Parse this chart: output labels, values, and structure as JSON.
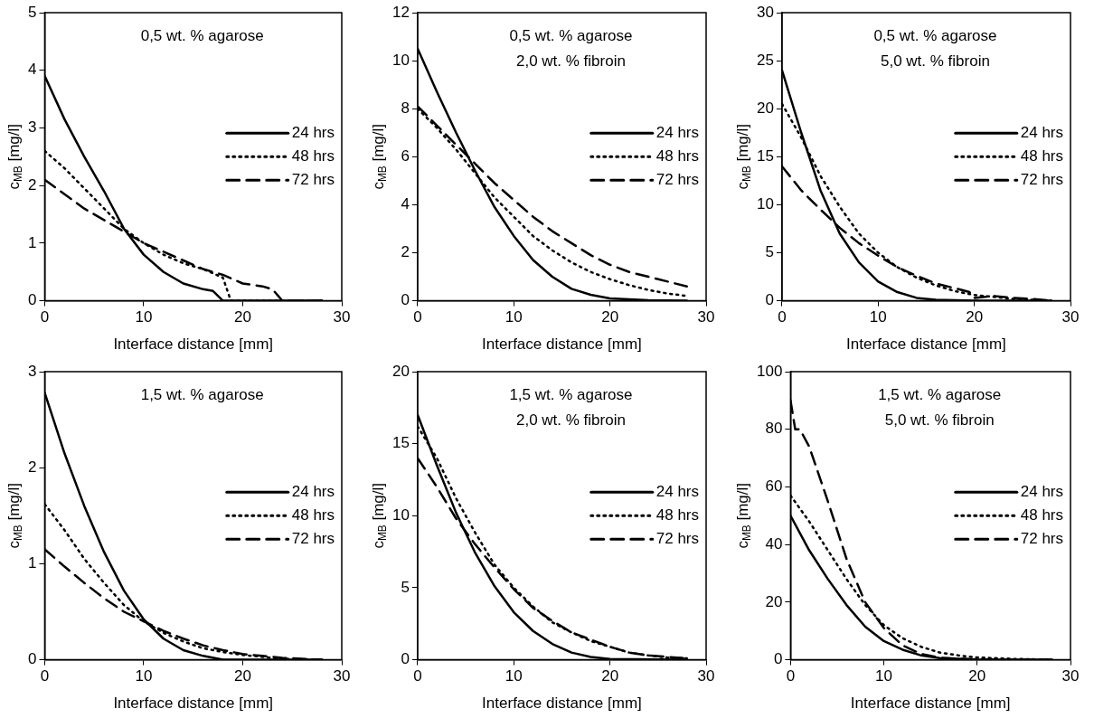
{
  "chart_data": [
    {
      "type": "line",
      "title": "0,5 wt. % agarose",
      "xlabel": "Interface distance [mm]",
      "ylabel": "c$_{MB}$ [mg/l]",
      "xlim": [
        0,
        30
      ],
      "xticks": [
        0,
        10,
        20,
        30
      ],
      "ylim": [
        0,
        5
      ],
      "yticks": [
        0,
        1,
        2,
        3,
        4,
        5
      ],
      "grid": false,
      "legend": "right",
      "marker": "none",
      "series": [
        {
          "name": "24 hrs",
          "color": "#000000",
          "line_style": "solid",
          "x": [
            0,
            2,
            4,
            6,
            8,
            10,
            12,
            14,
            16,
            17,
            18,
            28
          ],
          "values": [
            3.9,
            3.15,
            2.5,
            1.9,
            1.25,
            0.8,
            0.5,
            0.3,
            0.2,
            0.17,
            0,
            0
          ]
        },
        {
          "name": "48 hrs",
          "color": "#000000",
          "line_style": "dotted",
          "x": [
            0,
            2,
            4,
            6,
            8,
            10,
            12,
            14,
            16,
            18,
            18.8,
            28
          ],
          "values": [
            2.6,
            2.3,
            1.95,
            1.6,
            1.25,
            1.0,
            0.8,
            0.65,
            0.55,
            0.4,
            0,
            0
          ]
        },
        {
          "name": "72 hrs",
          "color": "#000000",
          "line_style": "dashed",
          "x": [
            0,
            2,
            4,
            6,
            8,
            10,
            12,
            14,
            16,
            18,
            20,
            22,
            23,
            24,
            28
          ],
          "values": [
            2.1,
            1.85,
            1.6,
            1.4,
            1.2,
            1.0,
            0.85,
            0.7,
            0.55,
            0.45,
            0.3,
            0.25,
            0.2,
            0,
            0
          ]
        }
      ]
    },
    {
      "type": "line",
      "title": "0,5 wt. % agarose",
      "subtitle": "2,0 wt. % fibroin",
      "xlabel": "Interface distance [mm]",
      "ylabel": "c$_{MB}$ [mg/l]",
      "xlim": [
        0,
        30
      ],
      "xticks": [
        0,
        10,
        20,
        30
      ],
      "ylim": [
        0,
        12
      ],
      "yticks": [
        0,
        2,
        4,
        6,
        8,
        10,
        12
      ],
      "grid": false,
      "legend": "right",
      "marker": "none",
      "series": [
        {
          "name": "24 hrs",
          "color": "#000000",
          "line_style": "solid",
          "x": [
            0,
            2,
            4,
            6,
            8,
            10,
            12,
            14,
            16,
            18,
            20,
            24,
            28
          ],
          "values": [
            10.5,
            8.7,
            7.0,
            5.4,
            3.9,
            2.7,
            1.7,
            1.0,
            0.5,
            0.25,
            0.1,
            0.02,
            0
          ]
        },
        {
          "name": "48 hrs",
          "color": "#000000",
          "line_style": "dotted",
          "x": [
            0,
            2,
            4,
            6,
            8,
            10,
            12,
            14,
            16,
            18,
            20,
            22,
            24,
            26,
            28
          ],
          "values": [
            8.0,
            7.2,
            6.3,
            5.3,
            4.3,
            3.5,
            2.7,
            2.1,
            1.6,
            1.2,
            0.9,
            0.65,
            0.45,
            0.3,
            0.2
          ]
        },
        {
          "name": "72 hrs",
          "color": "#000000",
          "line_style": "dashed",
          "x": [
            0,
            2,
            4,
            6,
            8,
            10,
            12,
            14,
            16,
            18,
            20,
            22,
            24,
            26,
            28
          ],
          "values": [
            8.1,
            7.3,
            6.5,
            5.7,
            4.9,
            4.2,
            3.5,
            2.9,
            2.4,
            1.9,
            1.5,
            1.2,
            1.0,
            0.8,
            0.6
          ]
        }
      ]
    },
    {
      "type": "line",
      "title": "0,5 wt. % agarose",
      "subtitle": "5,0 wt. % fibroin",
      "xlabel": "Interface distance [mm]",
      "ylabel": "c$_{MB}$ [mg/l]",
      "xlim": [
        0,
        30
      ],
      "xticks": [
        0,
        10,
        20,
        30
      ],
      "ylim": [
        0,
        30
      ],
      "yticks": [
        0,
        5,
        10,
        15,
        20,
        25,
        30
      ],
      "grid": false,
      "legend": "right",
      "marker": "none",
      "series": [
        {
          "name": "24 hrs",
          "color": "#000000",
          "line_style": "solid",
          "x": [
            0,
            2,
            4,
            6,
            8,
            10,
            12,
            14,
            16,
            20,
            28
          ],
          "values": [
            24,
            17.5,
            11.5,
            7,
            4,
            2,
            0.9,
            0.3,
            0.1,
            0,
            0
          ]
        },
        {
          "name": "48 hrs",
          "color": "#000000",
          "line_style": "dotted",
          "x": [
            0,
            2,
            4,
            6,
            8,
            10,
            12,
            14,
            16,
            18,
            20,
            22,
            24,
            26,
            28
          ],
          "values": [
            20.5,
            17,
            13,
            9.8,
            7,
            5,
            3.5,
            2.4,
            1.6,
            1.0,
            0.6,
            0.4,
            0.2,
            0.1,
            0
          ]
        },
        {
          "name": "72 hrs",
          "color": "#000000",
          "line_style": "dashed",
          "x": [
            0,
            2,
            4,
            6,
            8,
            10,
            12,
            14,
            16,
            18,
            19.5,
            20,
            22,
            24,
            26,
            28
          ],
          "values": [
            14,
            11.5,
            9.5,
            7.6,
            6,
            4.7,
            3.5,
            2.6,
            1.8,
            1.3,
            0.9,
            0.3,
            0.5,
            0.3,
            0.2,
            0
          ]
        }
      ]
    },
    {
      "type": "line",
      "title": "1,5 wt. % agarose",
      "xlabel": "Interface distance [mm]",
      "ylabel": "c$_{MB}$ [mg/l]",
      "xlim": [
        0,
        30
      ],
      "xticks": [
        0,
        10,
        20,
        30
      ],
      "ylim": [
        0,
        3
      ],
      "yticks": [
        0,
        1,
        2,
        3
      ],
      "grid": false,
      "legend": "right",
      "marker": "none",
      "series": [
        {
          "name": "24 hrs",
          "color": "#000000",
          "line_style": "solid",
          "x": [
            0,
            2,
            4,
            6,
            8,
            10,
            12,
            14,
            16,
            18,
            28
          ],
          "values": [
            2.78,
            2.15,
            1.6,
            1.12,
            0.72,
            0.42,
            0.22,
            0.1,
            0.04,
            0,
            0
          ]
        },
        {
          "name": "48 hrs",
          "color": "#000000",
          "line_style": "dotted",
          "x": [
            0,
            2,
            4,
            6,
            8,
            10,
            12,
            14,
            16,
            18,
            20,
            22,
            24,
            28
          ],
          "values": [
            1.62,
            1.35,
            1.05,
            0.8,
            0.57,
            0.4,
            0.28,
            0.19,
            0.12,
            0.08,
            0.05,
            0.03,
            0.01,
            0
          ]
        },
        {
          "name": "72 hrs",
          "color": "#000000",
          "line_style": "dashed",
          "x": [
            0,
            2,
            4,
            6,
            8,
            10,
            12,
            14,
            16,
            18,
            20,
            22,
            24,
            28
          ],
          "values": [
            1.15,
            0.97,
            0.8,
            0.64,
            0.5,
            0.4,
            0.3,
            0.22,
            0.15,
            0.1,
            0.06,
            0.04,
            0.02,
            0
          ]
        }
      ]
    },
    {
      "type": "line",
      "title": "1,5 wt. % agarose",
      "subtitle": "2,0 wt. % fibroin",
      "xlabel": "Interface distance [mm]",
      "ylabel": "c$_{MB}$ [mg/l]",
      "xlim": [
        0,
        30
      ],
      "xticks": [
        0,
        10,
        20,
        30
      ],
      "ylim": [
        0,
        20
      ],
      "yticks": [
        0,
        5,
        10,
        15,
        20
      ],
      "grid": false,
      "legend": "right",
      "marker": "none",
      "series": [
        {
          "name": "24 hrs",
          "color": "#000000",
          "line_style": "solid",
          "x": [
            0,
            2,
            4,
            6,
            8,
            10,
            12,
            14,
            16,
            18,
            20,
            28
          ],
          "values": [
            17,
            13.5,
            10.2,
            7.4,
            5.1,
            3.3,
            2.0,
            1.1,
            0.5,
            0.2,
            0.05,
            0
          ]
        },
        {
          "name": "48 hrs",
          "color": "#000000",
          "line_style": "dotted",
          "x": [
            0,
            2,
            4,
            6,
            8,
            10,
            12,
            14,
            16,
            18,
            20,
            22,
            24,
            26,
            28
          ],
          "values": [
            16.2,
            14,
            11.2,
            8.8,
            6.6,
            5,
            3.7,
            2.6,
            1.9,
            1.3,
            0.9,
            0.5,
            0.3,
            0.15,
            0.1
          ]
        },
        {
          "name": "72 hrs",
          "color": "#000000",
          "line_style": "dashed",
          "x": [
            0,
            2,
            4,
            6,
            8,
            10,
            12,
            14,
            16,
            18,
            20,
            22,
            24,
            26,
            28
          ],
          "values": [
            14,
            12,
            9.8,
            8,
            6.4,
            4.9,
            3.6,
            2.7,
            1.9,
            1.4,
            0.9,
            0.5,
            0.3,
            0.2,
            0.1
          ]
        }
      ]
    },
    {
      "type": "line",
      "title": "1,5 wt. % agarose",
      "subtitle": "5,0 wt. % fibroin",
      "xlabel": "Interface distance [mm]",
      "ylabel": "c$_{MB}$ [mg/l]",
      "xlim": [
        0,
        30
      ],
      "xticks": [
        0,
        10,
        20,
        30
      ],
      "ylim": [
        0,
        100
      ],
      "yticks": [
        0,
        20,
        40,
        60,
        80,
        100
      ],
      "grid": false,
      "legend": "right",
      "marker": "none",
      "series": [
        {
          "name": "24 hrs",
          "color": "#000000",
          "line_style": "solid",
          "x": [
            0,
            2,
            4,
            6,
            8,
            10,
            12,
            14,
            16,
            20,
            28
          ],
          "values": [
            50,
            38,
            28,
            19,
            11.5,
            6.5,
            3.5,
            1.5,
            0.6,
            0.1,
            0
          ]
        },
        {
          "name": "48 hrs",
          "color": "#000000",
          "line_style": "dotted",
          "x": [
            0,
            2,
            4,
            6,
            8,
            10,
            12,
            14,
            16,
            18,
            20,
            24,
            28
          ],
          "values": [
            57,
            48,
            38,
            28,
            19,
            12,
            7.5,
            4.5,
            2.5,
            1.5,
            0.8,
            0.3,
            0
          ]
        },
        {
          "name": "72 hrs",
          "color": "#000000",
          "line_style": "dashed",
          "x": [
            0,
            0.5,
            1,
            2,
            4,
            6,
            8,
            10,
            12,
            14,
            16,
            20,
            28
          ],
          "values": [
            90,
            80,
            80,
            74,
            55,
            35,
            20,
            11,
            5,
            2,
            0.7,
            0.1,
            0
          ]
        }
      ]
    }
  ]
}
